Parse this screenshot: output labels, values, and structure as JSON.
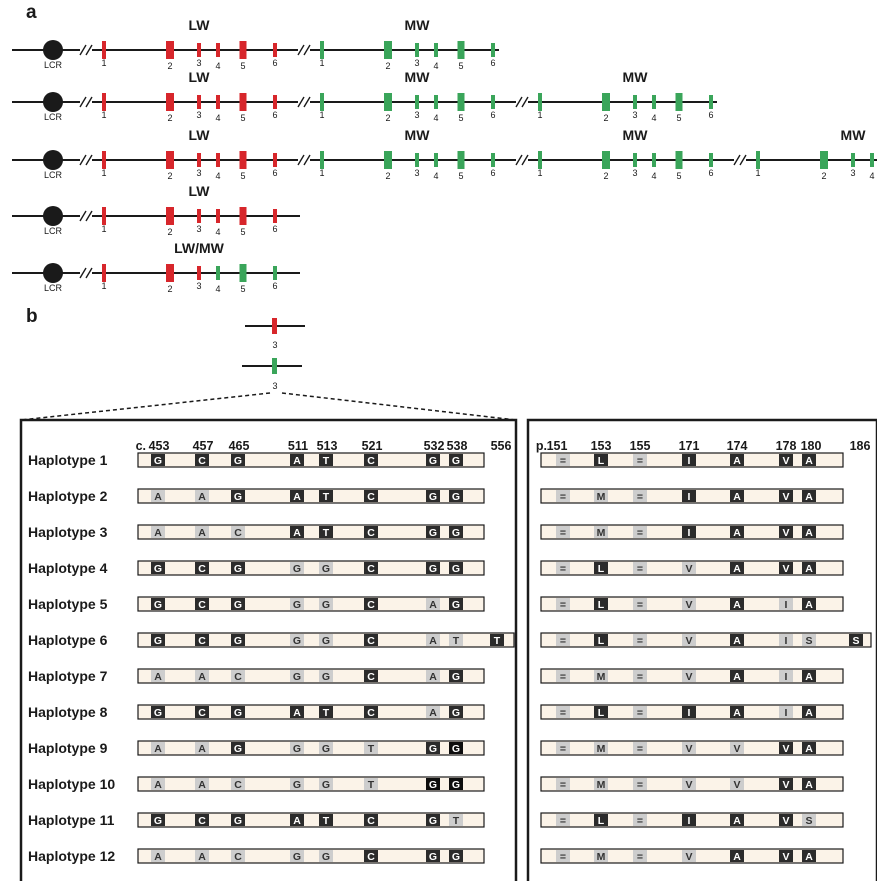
{
  "panel_a": {
    "letter": "a",
    "lcr_label": "LCR",
    "exon_numbers": [
      "1",
      "2",
      "3",
      "4",
      "5",
      "6"
    ],
    "arrays": [
      {
        "genes": [
          {
            "label": "LW",
            "color": "red"
          },
          {
            "label": "MW",
            "color": "green"
          }
        ]
      },
      {
        "genes": [
          {
            "label": "LW",
            "color": "red"
          },
          {
            "label": "MW",
            "color": "green"
          },
          {
            "label": "MW",
            "color": "green"
          }
        ]
      },
      {
        "genes": [
          {
            "label": "LW",
            "color": "red"
          },
          {
            "label": "MW",
            "color": "green"
          },
          {
            "label": "MW",
            "color": "green"
          },
          {
            "label": "MW",
            "color": "green"
          }
        ]
      },
      {
        "genes": [
          {
            "label": "LW",
            "color": "red"
          }
        ]
      },
      {
        "genes": [
          {
            "label": "LW/MW",
            "color": "hybrid"
          }
        ]
      }
    ]
  },
  "panel_b": {
    "letter": "b",
    "exon3_label": "3",
    "cdna_prefix": "c.",
    "cdna_positions": [
      "453",
      "457",
      "465",
      "511",
      "513",
      "521",
      "532",
      "538",
      "556"
    ],
    "protein_prefix": "p.",
    "protein_positions": [
      "151",
      "153",
      "155",
      "171",
      "174",
      "178",
      "180",
      "186"
    ],
    "haplotypes": [
      {
        "name": "Haplotype 1",
        "nt": [
          "G:d",
          "C:d",
          "G:d",
          "A:d",
          "T:d",
          "C:d",
          "G:d",
          "G:d",
          ""
        ],
        "aa": [
          "=:l",
          "L:d",
          "=:l",
          "I:d",
          "A:d",
          "V:d",
          "A:d",
          ""
        ]
      },
      {
        "name": "Haplotype 2",
        "nt": [
          "A:l",
          "A:l",
          "G:d",
          "A:d",
          "T:d",
          "C:d",
          "G:d",
          "G:d",
          ""
        ],
        "aa": [
          "=:l",
          "M:l",
          "=:l",
          "I:d",
          "A:d",
          "V:d",
          "A:d",
          ""
        ]
      },
      {
        "name": "Haplotype 3",
        "nt": [
          "A:l",
          "A:l",
          "C:l",
          "A:d",
          "T:d",
          "C:d",
          "G:d",
          "G:d",
          ""
        ],
        "aa": [
          "=:l",
          "M:l",
          "=:l",
          "I:d",
          "A:d",
          "V:d",
          "A:d",
          ""
        ]
      },
      {
        "name": "Haplotype 4",
        "nt": [
          "G:d",
          "C:d",
          "G:d",
          "G:l",
          "G:l",
          "C:d",
          "G:d",
          "G:d",
          ""
        ],
        "aa": [
          "=:l",
          "L:d",
          "=:l",
          "V:l",
          "A:d",
          "V:d",
          "A:d",
          ""
        ]
      },
      {
        "name": "Haplotype 5",
        "nt": [
          "G:d",
          "C:d",
          "G:d",
          "G:l",
          "G:l",
          "C:d",
          "A:l",
          "G:d",
          ""
        ],
        "aa": [
          "=:l",
          "L:d",
          "=:l",
          "V:l",
          "A:d",
          "I:l",
          "A:d",
          ""
        ]
      },
      {
        "name": "Haplotype 6",
        "nt": [
          "G:d",
          "C:d",
          "G:d",
          "G:l",
          "G:l",
          "C:d",
          "A:l",
          "T:l",
          "T:d"
        ],
        "aa": [
          "=:l",
          "L:d",
          "=:l",
          "V:l",
          "A:d",
          "I:l",
          "S:l",
          "S:d"
        ]
      },
      {
        "name": "Haplotype 7",
        "nt": [
          "A:l",
          "A:l",
          "C:l",
          "G:l",
          "G:l",
          "C:d",
          "A:l",
          "G:d",
          ""
        ],
        "aa": [
          "=:l",
          "M:l",
          "=:l",
          "V:l",
          "A:d",
          "I:l",
          "A:d",
          ""
        ]
      },
      {
        "name": "Haplotype 8",
        "nt": [
          "G:d",
          "C:d",
          "G:d",
          "A:d",
          "T:d",
          "C:d",
          "A:l",
          "G:d",
          ""
        ],
        "aa": [
          "=:l",
          "L:d",
          "=:l",
          "I:d",
          "A:d",
          "I:l",
          "A:d",
          ""
        ]
      },
      {
        "name": "Haplotype 9",
        "nt": [
          "A:l",
          "A:l",
          "G:d",
          "G:l",
          "G:l",
          "T:l",
          "G:d",
          "G:b",
          ""
        ],
        "aa": [
          "=:l",
          "M:l",
          "=:l",
          "V:l",
          "V:l",
          "V:d",
          "A:d",
          ""
        ]
      },
      {
        "name": "Haplotype 10",
        "nt": [
          "A:l",
          "A:l",
          "C:l",
          "G:l",
          "G:l",
          "T:l",
          "G:b",
          "G:b",
          ""
        ],
        "aa": [
          "=:l",
          "M:l",
          "=:l",
          "V:l",
          "V:l",
          "V:d",
          "A:d",
          ""
        ]
      },
      {
        "name": "Haplotype 11",
        "nt": [
          "G:d",
          "C:d",
          "G:d",
          "A:d",
          "T:d",
          "C:d",
          "G:d",
          "T:l",
          ""
        ],
        "aa": [
          "=:l",
          "L:d",
          "=:l",
          "I:d",
          "A:d",
          "V:d",
          "S:l",
          ""
        ]
      },
      {
        "name": "Haplotype 12",
        "nt": [
          "A:l",
          "A:l",
          "C:l",
          "G:l",
          "G:l",
          "C:d",
          "G:d",
          "G:d",
          ""
        ],
        "aa": [
          "=:l",
          "M:l",
          "=:l",
          "V:l",
          "A:d",
          "V:d",
          "A:d",
          ""
        ]
      }
    ]
  },
  "colors": {
    "red_exon": "#d7262b",
    "green_exon": "#3aa55a",
    "dark_cell": "#2b2b2b",
    "black_cell": "#0d0d0d",
    "light_cell": "#cdcdcd",
    "bar_fill": "#fbf3e8",
    "line": "#1a1a1a"
  }
}
